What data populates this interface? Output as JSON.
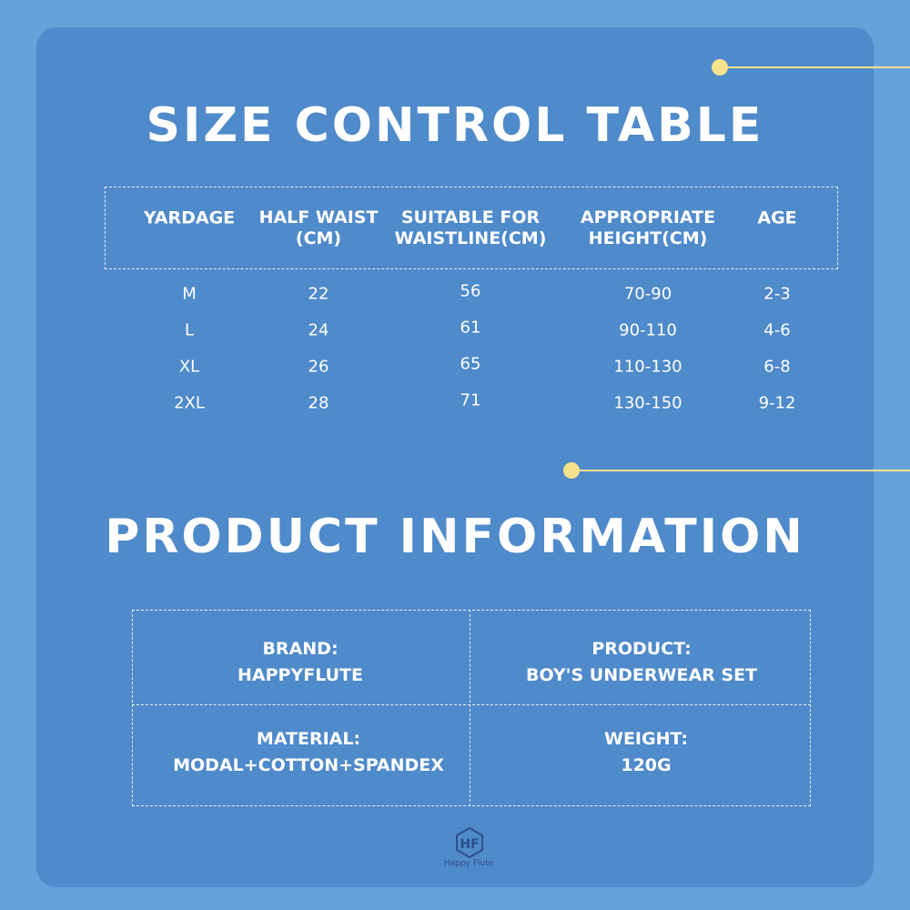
{
  "size_table": {
    "title": "SIZE CONTROL TABLE",
    "headers": [
      [
        "YARDAGE"
      ],
      [
        "HALF WAIST",
        "(CM)"
      ],
      [
        "SUITABLE FOR",
        "WAISTLINE(CM)"
      ],
      [
        "APPROPRIATE",
        "HEIGHT(CM)"
      ],
      [
        "AGE"
      ]
    ],
    "rows": [
      [
        "M",
        "22",
        "56",
        "70-90",
        "2-3"
      ],
      [
        "L",
        "24",
        "61",
        "90-110",
        "4-6"
      ],
      [
        "XL",
        "26",
        "65",
        "110-130",
        "6-8"
      ],
      [
        "2XL",
        "28",
        "71",
        "130-150",
        "9-12"
      ]
    ]
  },
  "product_info": {
    "title": "PRODUCT INFORMATION",
    "cells": [
      {
        "label": "BRAND:",
        "value": "HAPPYFLUTE"
      },
      {
        "label": "PRODUCT:",
        "value": "BOY'S UNDERWEAR SET"
      },
      {
        "label": "MATERIAL:",
        "value": "MODAL+COTTON+SPANDEX"
      },
      {
        "label": "WEIGHT:",
        "value": "120G"
      }
    ]
  },
  "logo": {
    "text": "Happy Flute"
  }
}
